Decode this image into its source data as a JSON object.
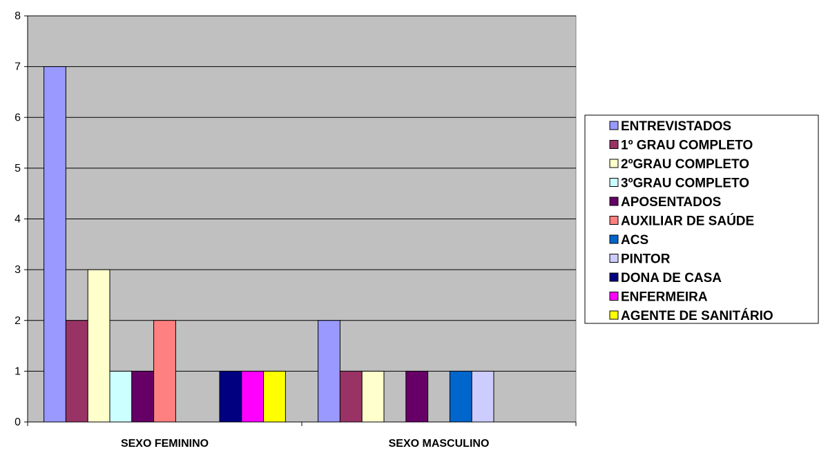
{
  "chart_data": {
    "type": "bar",
    "title": "",
    "xlabel": "",
    "ylabel": "",
    "ylim": [
      0,
      8
    ],
    "yticks": [
      "0",
      "1",
      "2",
      "3",
      "4",
      "5",
      "6",
      "7",
      "8"
    ],
    "grid": true,
    "legend_position": "right",
    "plot_background": "#c0c0c0",
    "categories": [
      "SEXO FEMININO",
      "SEXO MASCULINO"
    ],
    "series": [
      {
        "name": "ENTREVISTADOS",
        "color": "#9999ff",
        "values": [
          7,
          2
        ]
      },
      {
        "name": "1º GRAU COMPLETO",
        "color": "#993366",
        "values": [
          2,
          1
        ]
      },
      {
        "name": "2ºGRAU COMPLETO",
        "color": "#ffffcc",
        "values": [
          3,
          1
        ]
      },
      {
        "name": "3ºGRAU COMPLETO",
        "color": "#ccffff",
        "values": [
          1,
          0
        ]
      },
      {
        "name": "APOSENTADOS",
        "color": "#660066",
        "values": [
          1,
          1
        ]
      },
      {
        "name": "AUXILIAR DE SAÚDE",
        "color": "#ff8080",
        "values": [
          2,
          0
        ]
      },
      {
        "name": "ACS",
        "color": "#0066cc",
        "values": [
          0,
          1
        ]
      },
      {
        "name": "PINTOR",
        "color": "#ccccff",
        "values": [
          0,
          1
        ]
      },
      {
        "name": "DONA DE CASA",
        "color": "#000080",
        "values": [
          1,
          0
        ]
      },
      {
        "name": "ENFERMEIRA",
        "color": "#ff00ff",
        "values": [
          1,
          0
        ]
      },
      {
        "name": "AGENTE DE SANITÁRIO",
        "color": "#ffff00",
        "values": [
          1,
          0
        ]
      }
    ]
  }
}
